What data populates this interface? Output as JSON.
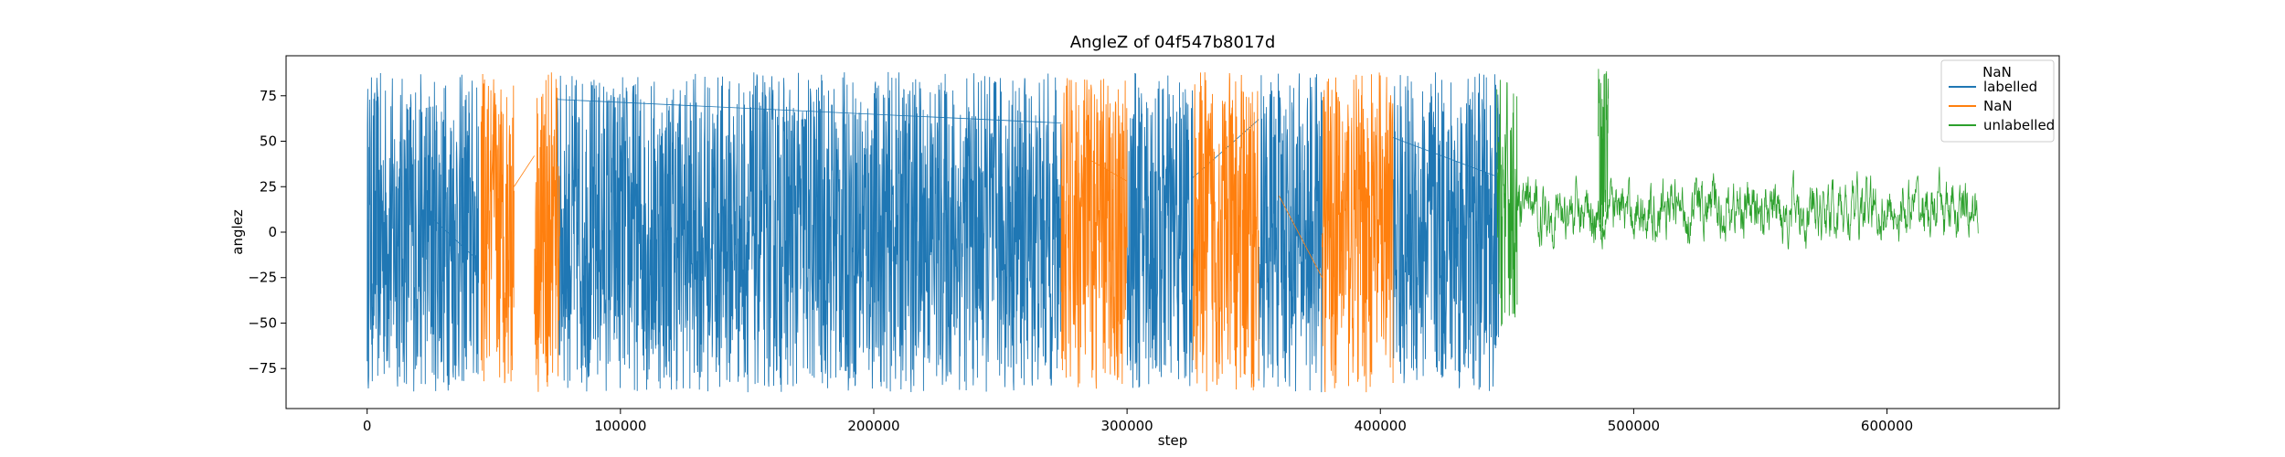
{
  "chart_data": {
    "type": "line",
    "title": "AngleZ of 04f547b8017d",
    "xlabel": "step",
    "ylabel": "anglez",
    "xlim": [
      -32000,
      668000
    ],
    "ylim": [
      -97,
      97
    ],
    "xticks": [
      0,
      100000,
      200000,
      300000,
      400000,
      500000,
      600000
    ],
    "yticks": [
      -75,
      -50,
      -25,
      0,
      25,
      50,
      75
    ],
    "grid": false,
    "legend": {
      "title": "NaN",
      "placement": "top-right"
    },
    "series": [
      {
        "name": "labelled",
        "color": "#1f77b4",
        "segments": [
          {
            "x": [
              0,
              44000
            ],
            "ylim": [
              -88,
              88
            ],
            "style": "dense"
          },
          {
            "x": [
              75000,
              274000
            ],
            "ylim": [
              -88,
              88
            ],
            "style": "dense"
          },
          {
            "x": [
              300000,
              326000
            ],
            "ylim": [
              -88,
              88
            ],
            "style": "dense"
          },
          {
            "x": [
              352000,
              377000
            ],
            "ylim": [
              -88,
              88
            ],
            "style": "dense"
          },
          {
            "x": [
              405000,
              447000
            ],
            "ylim": [
              -88,
              88
            ],
            "style": "dense"
          }
        ],
        "connectors": [
          {
            "x": [
              24000,
              44000
            ],
            "y": [
              10,
              -16
            ]
          },
          {
            "x": [
              75000,
              274000
            ],
            "y": [
              73,
              60
            ]
          },
          {
            "x": [
              326000,
              352000
            ],
            "y": [
              30,
              62
            ]
          },
          {
            "x": [
              405000,
              447000
            ],
            "y": [
              52,
              30
            ]
          }
        ]
      },
      {
        "name": "NaN",
        "color": "#ff7f0e",
        "segments": [
          {
            "x": [
              45000,
              58000
            ],
            "ylim": [
              -85,
              88
            ],
            "style": "dense"
          },
          {
            "x": [
              66000,
              76000
            ],
            "ylim": [
              -88,
              88
            ],
            "style": "dense"
          },
          {
            "x": [
              274000,
              300000
            ],
            "ylim": [
              -88,
              88
            ],
            "style": "dense"
          },
          {
            "x": [
              326000,
              352000
            ],
            "ylim": [
              -88,
              88
            ],
            "style": "dense"
          },
          {
            "x": [
              377000,
              405000
            ],
            "ylim": [
              -88,
              88
            ],
            "style": "dense"
          }
        ],
        "connectors": [
          {
            "x": [
              58000,
              66000
            ],
            "y": [
              25,
              42
            ]
          },
          {
            "x": [
              285000,
              300000
            ],
            "y": [
              40,
              28
            ]
          },
          {
            "x": [
              360000,
              377000
            ],
            "y": [
              20,
              -25
            ]
          }
        ]
      },
      {
        "name": "unlabelled",
        "color": "#2ca02c",
        "segments": [
          {
            "x": [
              446000,
              454000
            ],
            "ylim": [
              -55,
              85
            ],
            "style": "dense"
          },
          {
            "x": [
              454000,
              636000
            ],
            "ylim": [
              -18,
              42
            ],
            "style": "moderate"
          },
          {
            "x": [
              486000,
              490000
            ],
            "ylim": [
              -5,
              90
            ],
            "style": "spike"
          }
        ],
        "connectors": []
      }
    ]
  }
}
